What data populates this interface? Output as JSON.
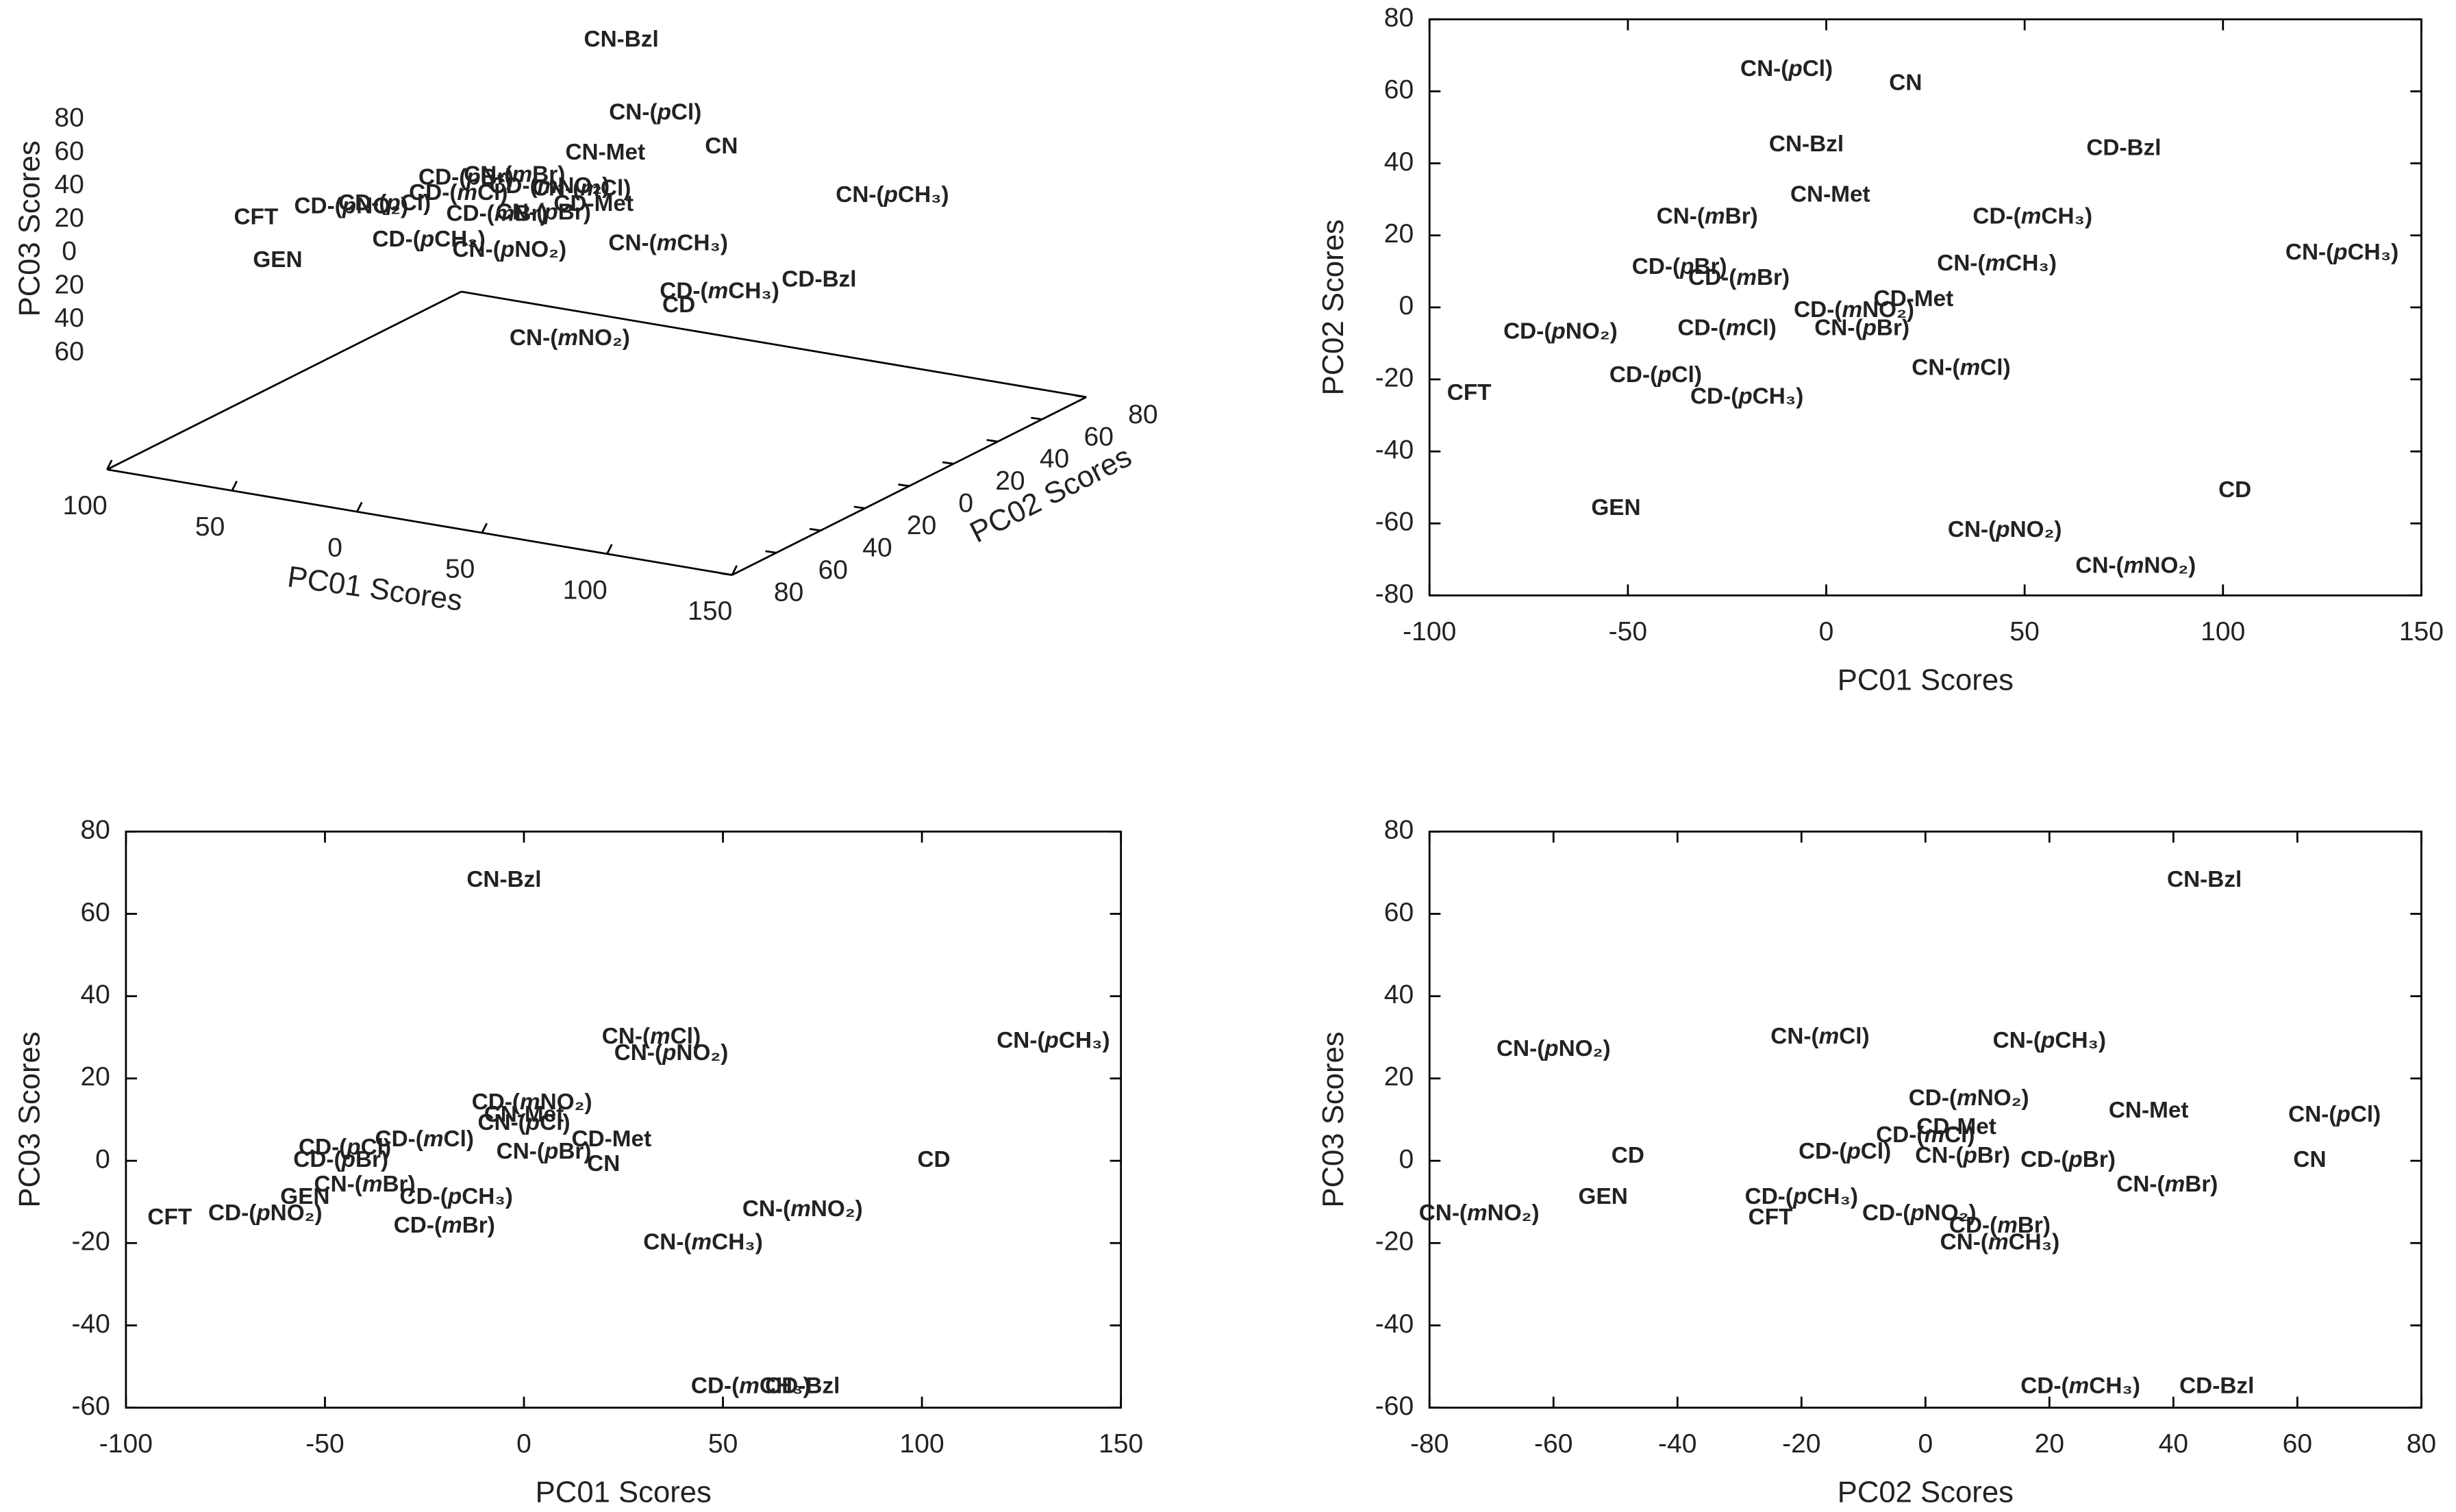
{
  "chart_data": [
    {
      "type": "scatter3d",
      "xlabel": "PC01 Scores",
      "ylabel": "PC02 Scores",
      "zlabel": "PC03 Scores",
      "labels": [
        "CN-Bzl",
        "CN-(pCl)",
        "CN",
        "CN-Met",
        "CN-(mBr)",
        "CN-(pCH₃)",
        "CN-(mCH₃)",
        "CN-(pBr)",
        "CN-(mCl)",
        "CN-(pNO₂)",
        "CN-(mNO₂)",
        "CD",
        "CD-Bzl",
        "CD-Met",
        "CD-(mCH₃)",
        "CD-(pCH₃)",
        "CD-(mBr)",
        "CD-(pBr)",
        "CD-(mCl)",
        "CD-(pCl)",
        "CD-(mNO₂)",
        "CD-(pNO₂)",
        "CFT",
        "GEN"
      ],
      "colors": [
        "#b01515",
        "#b01515",
        "#b01515",
        "#b01515",
        "#b01515",
        "#b01515",
        "#b01515",
        "#b01515",
        "#b01515",
        "#b01515",
        "#b01515",
        "#1a1ae6",
        "#1a1ae6",
        "#1a1ae6",
        "#1a1ae6",
        "#1a1ae6",
        "#1a1ae6",
        "#1a1ae6",
        "#1a1ae6",
        "#1a1ae6",
        "#1a1ae6",
        "#1a1ae6",
        "#000000",
        "#000000"
      ],
      "x": [
        -5,
        -10,
        20,
        1,
        -30,
        130,
        43,
        9,
        34,
        45,
        78,
        103,
        75,
        22,
        52,
        -20,
        -22,
        -37,
        -25,
        -43,
        7,
        -67,
        -90,
        -53
      ],
      "y": [
        45,
        66,
        62,
        31,
        25,
        15,
        12,
        -6,
        -17,
        -62,
        -72,
        -51,
        44,
        2,
        25,
        -25,
        8,
        11,
        -6,
        -19,
        -1,
        -7,
        -24,
        -56
      ],
      "z": [
        68,
        9,
        -1,
        11,
        -6,
        29,
        -20,
        2,
        30,
        26,
        -12,
        0,
        -55,
        5,
        -55,
        -9,
        -16,
        0,
        5,
        3,
        14,
        -13,
        -14,
        -9
      ],
      "xlim": [
        -100,
        150
      ],
      "ylim": [
        -80,
        80
      ],
      "zlim": [
        -60,
        80
      ],
      "xticks": [
        {
          "value": -100,
          "label": "100"
        },
        {
          "value": -50,
          "label": "50"
        },
        0,
        50,
        100,
        150
      ],
      "yticks": [
        {
          "value": -80,
          "label": "80"
        },
        {
          "value": -60,
          "label": "60"
        },
        {
          "value": -40,
          "label": "40"
        },
        {
          "value": -20,
          "label": "20"
        },
        0,
        20,
        40,
        60,
        80
      ],
      "zticks": [
        80,
        60,
        40,
        20,
        0,
        {
          "value": -20,
          "label": "20"
        },
        {
          "value": -40,
          "label": "40"
        },
        {
          "value": -60,
          "label": "60"
        }
      ]
    },
    {
      "type": "scatter",
      "xlabel": "PC01 Scores",
      "ylabel": "PC02 Scores",
      "labels": [
        "CN-Bzl",
        "CN-(pCl)",
        "CN",
        "CN-Met",
        "CN-(mBr)",
        "CN-(pCH₃)",
        "CN-(mCH₃)",
        "CN-(pBr)",
        "CN-(mCl)",
        "CN-(pNO₂)",
        "CN-(mNO₂)",
        "CD",
        "CD-Bzl",
        "CD-Met",
        "CD-(mCH₃)",
        "CD-(pCH₃)",
        "CD-(mBr)",
        "CD-(pBr)",
        "CD-(mCl)",
        "CD-(pCl)",
        "CD-(mNO₂)",
        "CD-(pNO₂)",
        "CFT",
        "GEN"
      ],
      "colors": [
        "#b01515",
        "#b01515",
        "#b01515",
        "#b01515",
        "#b01515",
        "#b01515",
        "#b01515",
        "#b01515",
        "#b01515",
        "#b01515",
        "#b01515",
        "#1a1ae6",
        "#1a1ae6",
        "#1a1ae6",
        "#1a1ae6",
        "#1a1ae6",
        "#1a1ae6",
        "#1a1ae6",
        "#1a1ae6",
        "#1a1ae6",
        "#1a1ae6",
        "#1a1ae6",
        "#000000",
        "#000000"
      ],
      "x": [
        -5,
        -10,
        20,
        1,
        -30,
        130,
        43,
        9,
        34,
        45,
        78,
        103,
        75,
        22,
        52,
        -20,
        -22,
        -37,
        -25,
        -43,
        7,
        -67,
        -90,
        -53
      ],
      "y": [
        45,
        66,
        62,
        31,
        25,
        15,
        12,
        -6,
        -17,
        -62,
        -72,
        -51,
        44,
        2,
        25,
        -25,
        8,
        11,
        -6,
        -19,
        -1,
        -7,
        -24,
        -56
      ],
      "xlim": [
        -100,
        150
      ],
      "ylim": [
        -80,
        80
      ],
      "xticks": [
        -100,
        -50,
        0,
        50,
        100,
        150
      ],
      "yticks": [
        -80,
        -60,
        -40,
        -20,
        0,
        20,
        40,
        60,
        80
      ]
    },
    {
      "type": "scatter",
      "xlabel": "PC01 Scores",
      "ylabel": "PC03 Scores",
      "labels": [
        "CN-Bzl",
        "CN-(pCl)",
        "CN",
        "CN-Met",
        "CN-(mBr)",
        "CN-(pCH₃)",
        "CN-(mCH₃)",
        "CN-(pBr)",
        "CN-(mCl)",
        "CN-(pNO₂)",
        "CN-(mNO₂)",
        "CD",
        "CD-Bzl",
        "CD-Met",
        "CD-(mCH₃)",
        "CD-(pCH₃)",
        "CD-(mBr)",
        "CD-(pBr)",
        "CD-(mCl)",
        "CD-(pCl)",
        "CD-(mNO₂)",
        "CD-(pNO₂)",
        "CFT",
        "GEN"
      ],
      "colors": [
        "#b01515",
        "#b01515",
        "#b01515",
        "#b01515",
        "#b01515",
        "#b01515",
        "#b01515",
        "#b01515",
        "#b01515",
        "#b01515",
        "#b01515",
        "#1a1ae6",
        "#1a1ae6",
        "#1a1ae6",
        "#1a1ae6",
        "#1a1ae6",
        "#1a1ae6",
        "#1a1ae6",
        "#1a1ae6",
        "#1a1ae6",
        "#1a1ae6",
        "#1a1ae6",
        "#000000",
        "#000000"
      ],
      "x": [
        -5,
        0,
        20,
        0,
        -40,
        133,
        45,
        5,
        32,
        37,
        70,
        103,
        70,
        22,
        57,
        -17,
        -20,
        -46,
        -25,
        -45,
        2,
        -65,
        -89,
        -55
      ],
      "y": [
        68,
        9,
        -1,
        11,
        -6,
        29,
        -20,
        2,
        30,
        26,
        -12,
        0,
        -55,
        5,
        -55,
        -9,
        -16,
        0,
        5,
        3,
        14,
        -13,
        -14,
        -9
      ],
      "xlim": [
        -100,
        150
      ],
      "ylim": [
        -60,
        80
      ],
      "xticks": [
        -100,
        -50,
        0,
        50,
        100,
        150
      ],
      "yticks": [
        -60,
        -40,
        -20,
        0,
        20,
        40,
        60,
        80
      ]
    },
    {
      "type": "scatter",
      "xlabel": "PC02 Scores",
      "ylabel": "PC03 Scores",
      "labels": [
        "CN-Bzl",
        "CN-(pCl)",
        "CN",
        "CN-Met",
        "CN-(mBr)",
        "CN-(pCH₃)",
        "CN-(mCH₃)",
        "CN-(pBr)",
        "CN-(mCl)",
        "CN-(pNO₂)",
        "CN-(mNO₂)",
        "CD",
        "CD-Bzl",
        "CD-Met",
        "CD-(mCH₃)",
        "CD-(pCH₃)",
        "CD-(mBr)",
        "CD-(pBr)",
        "CD-(mCl)",
        "CD-(pCl)",
        "CD-(mNO₂)",
        "CD-(pNO₂)",
        "CFT",
        "GEN"
      ],
      "colors": [
        "#b01515",
        "#b01515",
        "#b01515",
        "#b01515",
        "#b01515",
        "#b01515",
        "#b01515",
        "#b01515",
        "#b01515",
        "#b01515",
        "#b01515",
        "#1a1ae6",
        "#1a1ae6",
        "#1a1ae6",
        "#1a1ae6",
        "#1a1ae6",
        "#1a1ae6",
        "#1a1ae6",
        "#1a1ae6",
        "#1a1ae6",
        "#1a1ae6",
        "#1a1ae6",
        "#000000",
        "#000000"
      ],
      "x": [
        45,
        66,
        62,
        36,
        39,
        20,
        12,
        6,
        -17,
        -60,
        -72,
        -48,
        47,
        5,
        25,
        -20,
        12,
        23,
        0,
        -13,
        7,
        -1,
        -25,
        -52
      ],
      "y": [
        68,
        11,
        0,
        12,
        -6,
        29,
        -20,
        1,
        30,
        27,
        -13,
        1,
        -55,
        8,
        -55,
        -9,
        -16,
        0,
        6,
        2,
        15,
        -13,
        -14,
        -9
      ],
      "xlim": [
        -80,
        80
      ],
      "ylim": [
        -60,
        80
      ],
      "xticks": [
        -80,
        -60,
        -40,
        -20,
        0,
        20,
        40,
        60,
        80
      ],
      "yticks": [
        -60,
        -40,
        -20,
        0,
        20,
        40,
        60,
        80
      ]
    }
  ]
}
